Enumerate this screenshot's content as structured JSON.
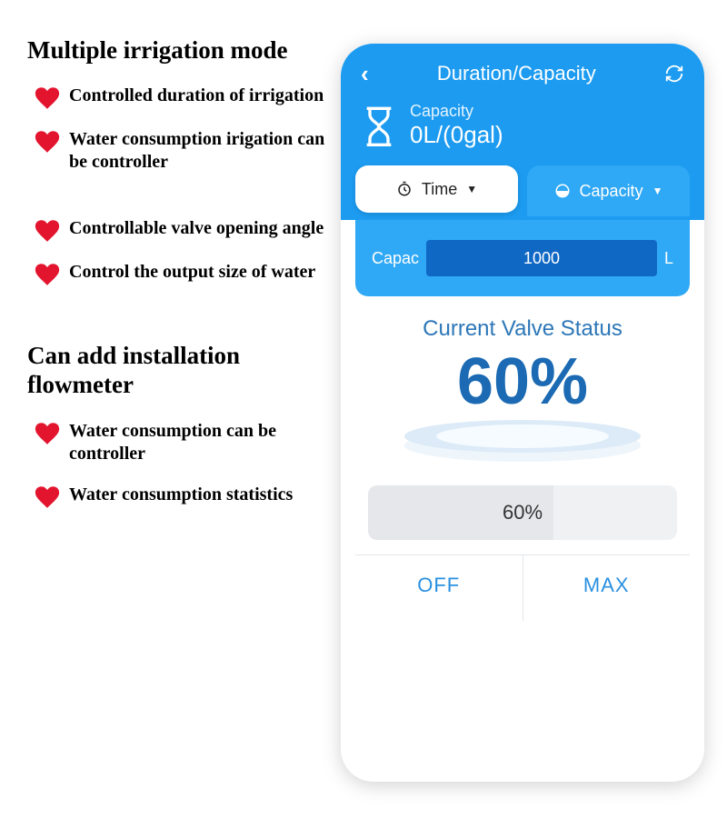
{
  "colors": {
    "heart": "#e3152e",
    "phone_primary": "#1c9bf0",
    "phone_primary_light": "#2fa8f5",
    "input_dark": "#1068c5",
    "status_text": "#2d77b8",
    "percent_text": "#1b6ab3",
    "button_text": "#2a90e0",
    "slider_bg": "#f0f1f3"
  },
  "left": {
    "section1_title": "Multiple irrigation mode",
    "section1_bullets": [
      "Controlled duration of irrigation",
      "Water consumption irigation can be controller",
      "Controllable valve opening angle",
      "Control the output size of water"
    ],
    "section2_title": "Can add installation flowmeter",
    "section2_bullets": [
      "Water consumption can be controller",
      "Water consumption statistics"
    ]
  },
  "phone": {
    "header_title": "Duration/Capacity",
    "capacity_label": "Capacity",
    "capacity_value": "0L/(0gal)",
    "tab_time": "Time",
    "tab_capacity": "Capacity",
    "input_label": "Capac",
    "input_value": "1000",
    "input_unit": "L",
    "status_title": "Current Valve Status",
    "status_percent": "60%",
    "slider_percent_text": "60%",
    "slider_fill_pct": 60,
    "btn_off": "OFF",
    "btn_max": "MAX"
  }
}
